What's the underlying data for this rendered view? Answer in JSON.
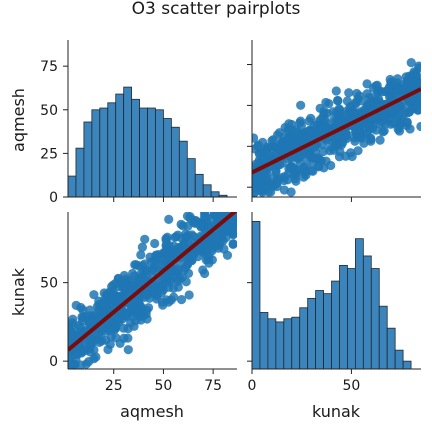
{
  "chart_data": {
    "type": "pairplot",
    "title": "O3 scatter pairplots",
    "variables": [
      "aqmesh",
      "kunak"
    ],
    "colors": {
      "points": "#1f77b4",
      "bars": "#3b84bc",
      "regression": "#7a0c0c"
    },
    "panels": [
      {
        "id": "aqmesh_hist",
        "type": "histogram",
        "variable": "aqmesh",
        "xlim": [
          2,
          87
        ],
        "ylim": [
          0,
          90
        ],
        "y_ticks": [
          0,
          25,
          50,
          75
        ],
        "bin_edges": [
          2,
          6,
          10,
          14,
          18,
          22,
          26,
          30,
          34,
          38,
          42,
          46,
          50,
          54,
          58,
          62,
          66,
          70,
          74,
          78,
          82,
          86
        ],
        "counts_scaled": [
          12,
          28,
          43,
          50,
          51,
          54,
          59,
          63,
          56,
          51,
          51,
          50,
          45,
          40,
          32,
          22,
          13,
          7,
          3,
          1,
          0
        ]
      },
      {
        "id": "kunak_vs_aqmesh",
        "type": "scatter",
        "x_variable": "kunak",
        "y_variable": "aqmesh",
        "xlim": [
          0,
          85
        ],
        "ylim": [
          -6,
          90
        ],
        "regression": {
          "slope": 0.6,
          "intercept": 9
        },
        "point_cloud": {
          "n": 650,
          "x_range": [
            0,
            85
          ],
          "noise_sd": 9
        }
      },
      {
        "id": "aqmesh_vs_kunak",
        "type": "scatter",
        "x_variable": "aqmesh",
        "y_variable": "kunak",
        "xlim": [
          2,
          87
        ],
        "ylim": [
          -5,
          95
        ],
        "x_ticks": [
          25,
          50,
          75
        ],
        "y_ticks": [
          0,
          50
        ],
        "regression": {
          "slope": 1.05,
          "intercept": 5
        },
        "point_cloud": {
          "n": 650,
          "x_range": [
            2,
            87
          ],
          "noise_sd": 11
        }
      },
      {
        "id": "kunak_hist",
        "type": "histogram",
        "variable": "kunak",
        "xlim": [
          0,
          85
        ],
        "x_ticks": [
          0,
          50
        ],
        "bin_edges": [
          0,
          4,
          8,
          12,
          16,
          20,
          24,
          28,
          32,
          36,
          40,
          44,
          48,
          52,
          56,
          60,
          64,
          68,
          72,
          76,
          80,
          84
        ],
        "counts_scaled": [
          94,
          36,
          32,
          30,
          32,
          33,
          39,
          45,
          50,
          48,
          56,
          66,
          64,
          83,
          72,
          64,
          40,
          26,
          12,
          5,
          0
        ]
      }
    ]
  }
}
